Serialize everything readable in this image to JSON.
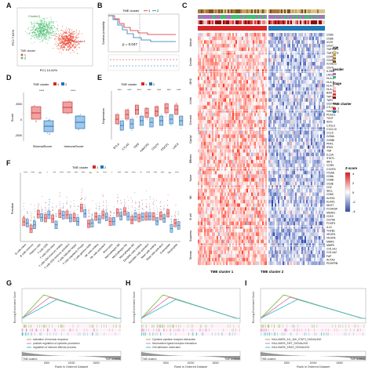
{
  "panel_labels": {
    "a": "A",
    "b": "B",
    "c": "C",
    "d": "D",
    "e": "E",
    "f": "F",
    "g": "G",
    "h": "H",
    "i": "I"
  },
  "colors": {
    "cluster1": "#d62728",
    "cluster2": "#1f77b4",
    "heat_high": "#d7191c",
    "heat_low": "#2c4ba0",
    "gsea_green": "#7fbf3f",
    "gsea_pink": "#e377c2",
    "gsea_cyan": "#3fbfbf"
  },
  "panel_a": {
    "xlabel": "PC1 10.62%",
    "ylabel": "PC2 7.81%",
    "legend_title": "TME cluster",
    "legend_items": [
      "1",
      "2"
    ],
    "group_labels": [
      "Cluster2",
      "Cluster1"
    ]
  },
  "panel_b": {
    "legend_title": "TME cluster",
    "legend_items": [
      "1",
      "2"
    ],
    "ylabel": "Survival probability",
    "pvalue": "p = 0.047"
  },
  "panel_c": {
    "annotation_tracks": [
      "age",
      "gender",
      "stage",
      "TME cluster"
    ],
    "legend": {
      "age_title": "age",
      "gender_title": "gender",
      "stage_title": "stage",
      "cluster_title": "TME cluster",
      "zscore_title": "Z-score",
      "zscore_ticks": [
        "4",
        "2",
        "0",
        "-2",
        "-4"
      ],
      "cluster_items": [
        "1",
        "2"
      ]
    },
    "gene_labels": [
      "CD80",
      "CD86",
      "ICOS",
      "CD27",
      "TNFRSF4",
      "TNFRSF9",
      "CD40",
      "CD28",
      "ICOSLG",
      "CD70",
      "IL2RA",
      "LAG3",
      "HLA-A",
      "HLA-B",
      "HLA-C",
      "HLA-E",
      "B2M",
      "TAP1",
      "TAP2",
      "CD274",
      "CTLA4",
      "HAVCR2",
      "PDCD1",
      "TIGIT",
      "IDO1",
      "CXCL9",
      "CXCL10",
      "CCL5",
      "GZMA",
      "GZMB",
      "PRF1",
      "IFNG",
      "TNF",
      "IL12A",
      "STAT1",
      "IRF1",
      "CCR5",
      "CXCR3",
      "ITGAE",
      "CD8A",
      "CD8B",
      "CD3E",
      "CD2",
      "SELL",
      "CD69",
      "KLRD1",
      "KLRK1",
      "NKG7",
      "FCGR3A",
      "MS4A1",
      "CD19",
      "CD79A",
      "FOXP3",
      "IL10",
      "TGFB1",
      "VEGFA",
      "VEGFB",
      "MMP2",
      "MMP9",
      "COL1A1",
      "COL1A2",
      "FAP",
      "ACTA2",
      "PDGFRB"
    ],
    "row_groups": [
      "Activat",
      "Costim",
      "MHC",
      "Inhibit",
      "Chemok",
      "Cytolyt",
      "Effector",
      "Naive",
      "NK",
      "B cell",
      "Suppress",
      "Stroma"
    ],
    "xlabels": [
      "TME cluster 1",
      "TME cluster 2"
    ]
  },
  "panel_d": {
    "ylabel": "Score",
    "legend_title": "TME cluster",
    "legend_items": [
      "1",
      "2"
    ],
    "categories": [
      "StromalScore",
      "ImmuneScore"
    ],
    "yticks": [
      "2000",
      "0",
      "-2000"
    ],
    "sig": [
      "****",
      "****"
    ]
  },
  "panel_e": {
    "ylabel": "Expression",
    "legend_title": "TME cluster",
    "legend_items": [
      "1",
      "2"
    ],
    "categories": [
      "BTLA",
      "CTLA4",
      "TIM3",
      "HAVCR2",
      "CD274",
      "PDCD1",
      "LAG3"
    ],
    "sig": [
      "****",
      "****",
      "****",
      "****",
      "****",
      "****",
      "****"
    ]
  },
  "panel_f": {
    "ylabel": "Fraction",
    "legend_title": "TME cluster",
    "legend_items": [
      "1",
      "2"
    ],
    "categories": [
      "B cells naive",
      "B cells memory",
      "Plasma cells",
      "T cells CD8",
      "T cells CD4 naive",
      "T cells CD4 memory resting",
      "T cells CD4 memory activated",
      "T cells follicular helper",
      "T cells regulatory (Tregs)",
      "T cells gamma delta",
      "NK cells resting",
      "NK cells activated",
      "Monocytes",
      "Macrophages M0",
      "Macrophages M1",
      "Macrophages M2",
      "Dendritic cells resting",
      "Dendritic cells activated",
      "Mast cells resting",
      "Mast cells activated",
      "Eosinophils",
      "Neutrophils"
    ],
    "sig": [
      "****",
      "****",
      "ns",
      "*",
      "***",
      "****",
      "****",
      "****",
      "****",
      "ns",
      "**",
      "****",
      "*",
      "****",
      "****",
      "****",
      "**",
      "****",
      "****",
      "****",
      "ns",
      "****"
    ]
  },
  "panel_g": {
    "title": "GO Function",
    "ylabel": "Running Enrichment Score",
    "xlabel": "Rank in Ordered Dataset",
    "bottom_left": "TME cluster1",
    "bottom_right": "TME cluster2",
    "xticks": [
      "5000",
      "10000",
      "15000"
    ],
    "legend_items": [
      "activation of immune response",
      "positive regulation of cytokine production",
      "regulation of immune effector process"
    ]
  },
  "panel_h": {
    "title": "KEGG Pathway",
    "ylabel": "Running Enrichment Score",
    "xlabel": "Rank in Ordered Dataset",
    "bottom_left": "TME cluster1",
    "bottom_right": "TME cluster2",
    "xticks": [
      "5000",
      "10000",
      "15000"
    ],
    "legend_items": [
      "Cytokine-cytokine receptor interaction",
      "Neuroactive ligand-receptor interaction",
      "Cell adhesion molecules"
    ]
  },
  "panel_i": {
    "title": "Hallmark Geneset",
    "ylabel": "Running Enrichment Score",
    "xlabel": "Rank in Ordered Dataset",
    "bottom_left": "TME cluster1",
    "bottom_right": "TME cluster2",
    "xticks": [
      "5000",
      "10000",
      "15000"
    ],
    "legend_items": [
      "HALLMARK_IL6_JAK_STAT3_SIGNALING",
      "HALLMARK_EMT_SIGNALING",
      "HALLMARK_KRAS_SIGNALING"
    ]
  }
}
